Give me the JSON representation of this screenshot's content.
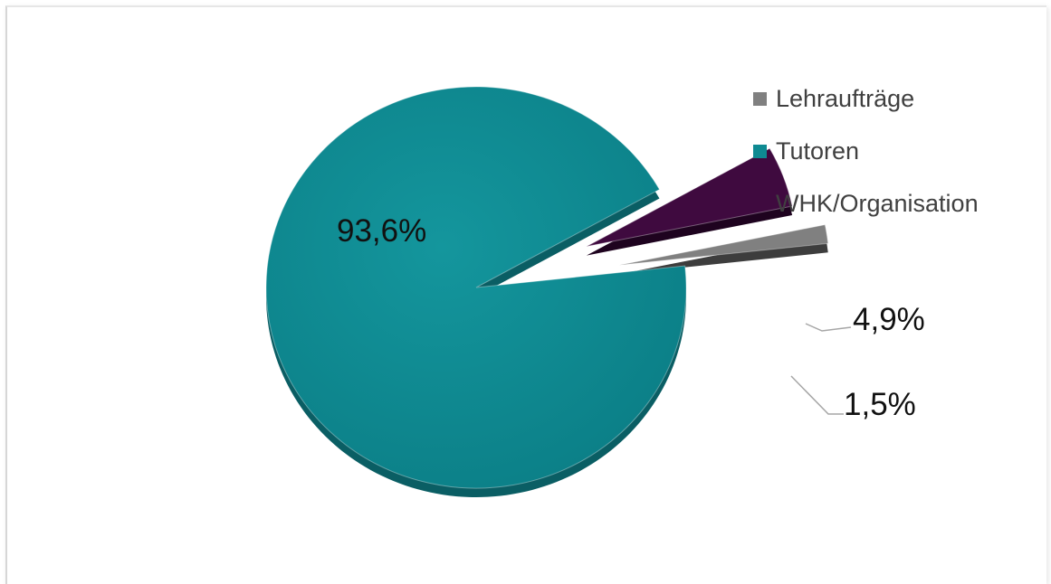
{
  "chart_data": {
    "type": "pie",
    "exploded": true,
    "three_d": true,
    "title": "",
    "slices": [
      {
        "name": "Lehraufträge",
        "value": 1.5,
        "label": "1,5%",
        "color": "#808080"
      },
      {
        "name": "Tutoren",
        "value": 93.6,
        "label": "93,6%",
        "color": "#0e8a92"
      },
      {
        "name": "WHK/Organisation",
        "value": 4.9,
        "label": "4,9%",
        "color": "#3f0a3f"
      }
    ],
    "legend_position": "right"
  }
}
